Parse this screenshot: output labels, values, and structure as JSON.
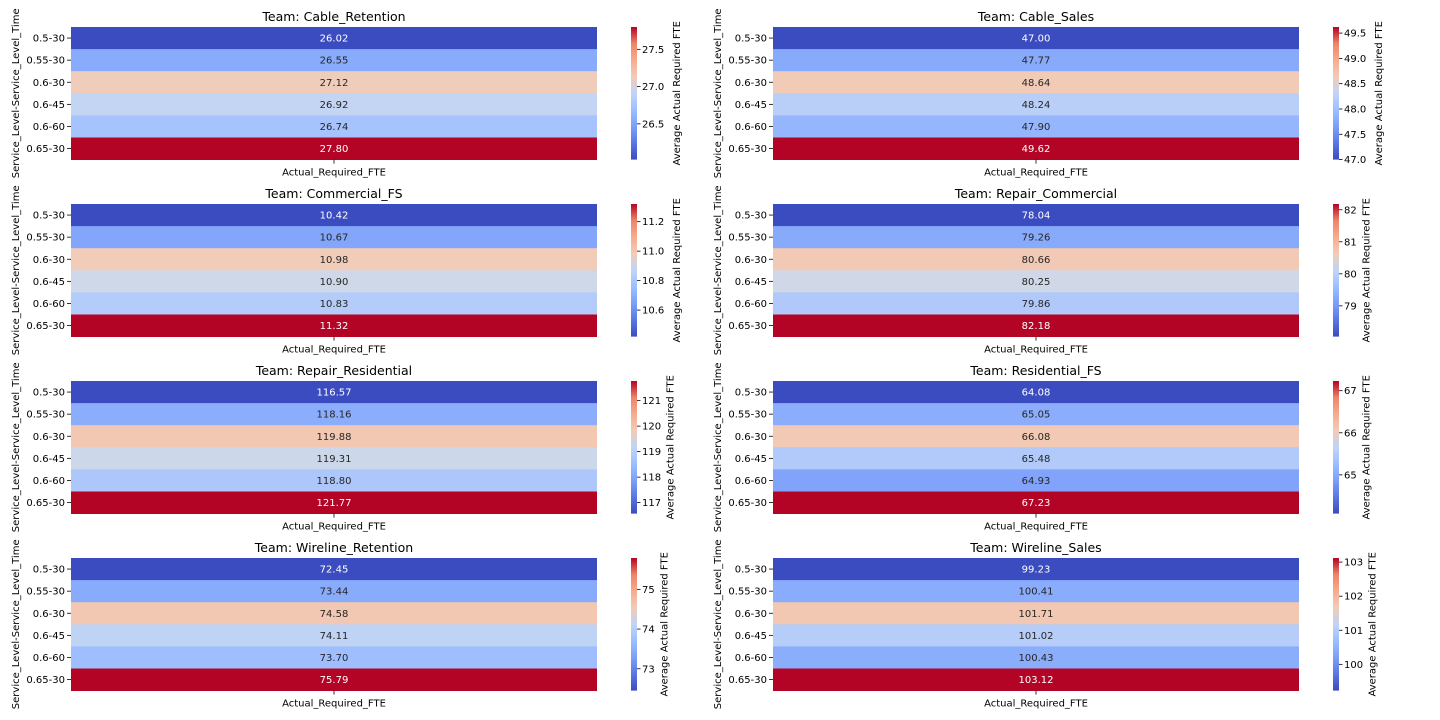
{
  "chart_data": [
    {
      "type": "heatmap",
      "title": "Team: Cable_Retention",
      "ylabel": "Service_Level-Service_Level_Time",
      "xlabel": "",
      "categories_x": [
        "Actual_Required_FTE"
      ],
      "categories_y": [
        "0.5-30",
        "0.55-30",
        "0.6-30",
        "0.6-45",
        "0.6-60",
        "0.65-30"
      ],
      "values": [
        26.02,
        26.55,
        27.12,
        26.92,
        26.74,
        27.8
      ],
      "colorbar": {
        "label": "Average Actual Required FTE",
        "ticks": [
          26.5,
          27.0,
          27.5
        ],
        "tick_labels": [
          "26.5",
          "27.0",
          "27.5"
        ]
      },
      "colormap": "coolwarm"
    },
    {
      "type": "heatmap",
      "title": "Team: Cable_Sales",
      "ylabel": "Service_Level-Service_Level_Time",
      "xlabel": "",
      "categories_x": [
        "Actual_Required_FTE"
      ],
      "categories_y": [
        "0.5-30",
        "0.55-30",
        "0.6-30",
        "0.6-45",
        "0.6-60",
        "0.65-30"
      ],
      "values": [
        47.0,
        47.77,
        48.64,
        48.24,
        47.9,
        49.62
      ],
      "colorbar": {
        "label": "Average Actual Required FTE",
        "ticks": [
          47.0,
          47.5,
          48.0,
          48.5,
          49.0,
          49.5
        ],
        "tick_labels": [
          "47.0",
          "47.5",
          "48.0",
          "48.5",
          "49.0",
          "49.5"
        ]
      },
      "colormap": "coolwarm"
    },
    {
      "type": "heatmap",
      "title": "Team: Commercial_FS",
      "ylabel": "Service_Level-Service_Level_Time",
      "xlabel": "",
      "categories_x": [
        "Actual_Required_FTE"
      ],
      "categories_y": [
        "0.5-30",
        "0.55-30",
        "0.6-30",
        "0.6-45",
        "0.6-60",
        "0.65-30"
      ],
      "values": [
        10.42,
        10.67,
        10.98,
        10.9,
        10.83,
        11.32
      ],
      "colorbar": {
        "label": "Average Actual Required FTE",
        "ticks": [
          10.6,
          10.8,
          11.0,
          11.2
        ],
        "tick_labels": [
          "10.6",
          "10.8",
          "11.0",
          "11.2"
        ]
      },
      "colormap": "coolwarm"
    },
    {
      "type": "heatmap",
      "title": "Team: Repair_Commercial",
      "ylabel": "Service_Level-Service_Level_Time",
      "xlabel": "",
      "categories_x": [
        "Actual_Required_FTE"
      ],
      "categories_y": [
        "0.5-30",
        "0.55-30",
        "0.6-30",
        "0.6-45",
        "0.6-60",
        "0.65-30"
      ],
      "values": [
        78.04,
        79.26,
        80.66,
        80.25,
        79.86,
        82.18
      ],
      "colorbar": {
        "label": "Average Actual Required FTE",
        "ticks": [
          79,
          80,
          81,
          82
        ],
        "tick_labels": [
          "79",
          "80",
          "81",
          "82"
        ]
      },
      "colormap": "coolwarm"
    },
    {
      "type": "heatmap",
      "title": "Team: Repair_Residential",
      "ylabel": "Service_Level-Service_Level_Time",
      "xlabel": "",
      "categories_x": [
        "Actual_Required_FTE"
      ],
      "categories_y": [
        "0.5-30",
        "0.55-30",
        "0.6-30",
        "0.6-45",
        "0.6-60",
        "0.65-30"
      ],
      "values": [
        116.57,
        118.16,
        119.88,
        119.31,
        118.8,
        121.77
      ],
      "colorbar": {
        "label": "Average Actual Required FTE",
        "ticks": [
          117,
          118,
          119,
          120,
          121
        ],
        "tick_labels": [
          "117",
          "118",
          "119",
          "120",
          "121"
        ]
      },
      "colormap": "coolwarm"
    },
    {
      "type": "heatmap",
      "title": "Team: Residential_FS",
      "ylabel": "Service_Level-Service_Level_Time",
      "xlabel": "",
      "categories_x": [
        "Actual_Required_FTE"
      ],
      "categories_y": [
        "0.5-30",
        "0.55-30",
        "0.6-30",
        "0.6-45",
        "0.6-60",
        "0.65-30"
      ],
      "values": [
        64.08,
        65.05,
        66.08,
        65.48,
        64.93,
        67.23
      ],
      "colorbar": {
        "label": "Average Actual Required FTE",
        "ticks": [
          65,
          66,
          67
        ],
        "tick_labels": [
          "65",
          "66",
          "67"
        ]
      },
      "colormap": "coolwarm"
    },
    {
      "type": "heatmap",
      "title": "Team: Wireline_Retention",
      "ylabel": "Service_Level-Service_Level_Time",
      "xlabel": "",
      "categories_x": [
        "Actual_Required_FTE"
      ],
      "categories_y": [
        "0.5-30",
        "0.55-30",
        "0.6-30",
        "0.6-45",
        "0.6-60",
        "0.65-30"
      ],
      "values": [
        72.45,
        73.44,
        74.58,
        74.11,
        73.7,
        75.79
      ],
      "colorbar": {
        "label": "Average Actual Required FTE",
        "ticks": [
          73,
          74,
          75
        ],
        "tick_labels": [
          "73",
          "74",
          "75"
        ]
      },
      "colormap": "coolwarm"
    },
    {
      "type": "heatmap",
      "title": "Team: Wireline_Sales",
      "ylabel": "Service_Level-Service_Level_Time",
      "xlabel": "",
      "categories_x": [
        "Actual_Required_FTE"
      ],
      "categories_y": [
        "0.5-30",
        "0.55-30",
        "0.6-30",
        "0.6-45",
        "0.6-60",
        "0.65-30"
      ],
      "values": [
        99.23,
        100.41,
        101.71,
        101.02,
        100.43,
        103.12
      ],
      "colorbar": {
        "label": "Average Actual Required FTE",
        "ticks": [
          100,
          101,
          102,
          103
        ],
        "tick_labels": [
          "100",
          "101",
          "102",
          "103"
        ]
      },
      "colormap": "coolwarm"
    }
  ]
}
